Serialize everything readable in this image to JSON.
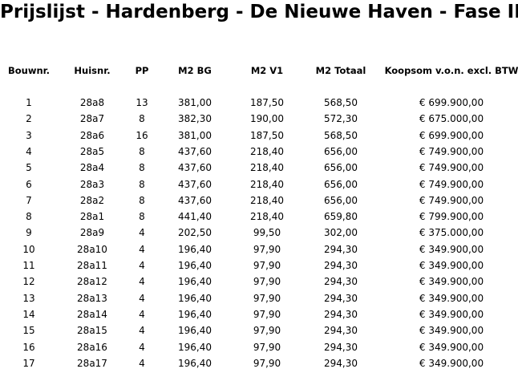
{
  "header": {
    "title": "Prijslijst - Hardenberg - De Nieuwe Haven - Fase II"
  },
  "table": {
    "columns": [
      "Bouwnr.",
      "Huisnr.",
      "PP",
      "M2 BG",
      "M2 V1",
      "M2 Totaal",
      "Koopsom v.o.n. excl. BTW"
    ],
    "rows": [
      [
        "1",
        "28a8",
        "13",
        "381,00",
        "187,50",
        "568,50",
        "€ 699.900,00"
      ],
      [
        "2",
        "28a7",
        "8",
        "382,30",
        "190,00",
        "572,30",
        "€ 675.000,00"
      ],
      [
        "3",
        "28a6",
        "16",
        "381,00",
        "187,50",
        "568,50",
        "€ 699.900,00"
      ],
      [
        "4",
        "28a5",
        "8",
        "437,60",
        "218,40",
        "656,00",
        "€ 749.900,00"
      ],
      [
        "5",
        "28a4",
        "8",
        "437,60",
        "218,40",
        "656,00",
        "€ 749.900,00"
      ],
      [
        "6",
        "28a3",
        "8",
        "437,60",
        "218,40",
        "656,00",
        "€ 749.900,00"
      ],
      [
        "7",
        "28a2",
        "8",
        "437,60",
        "218,40",
        "656,00",
        "€ 749.900,00"
      ],
      [
        "8",
        "28a1",
        "8",
        "441,40",
        "218,40",
        "659,80",
        "€ 799.900,00"
      ],
      [
        "9",
        "28a9",
        "4",
        "202,50",
        "99,50",
        "302,00",
        "€ 375.000,00"
      ],
      [
        "10",
        "28a10",
        "4",
        "196,40",
        "97,90",
        "294,30",
        "€ 349.900,00"
      ],
      [
        "11",
        "28a11",
        "4",
        "196,40",
        "97,90",
        "294,30",
        "€ 349.900,00"
      ],
      [
        "12",
        "28a12",
        "4",
        "196,40",
        "97,90",
        "294,30",
        "€ 349.900,00"
      ],
      [
        "13",
        "28a13",
        "4",
        "196,40",
        "97,90",
        "294,30",
        "€ 349.900,00"
      ],
      [
        "14",
        "28a14",
        "4",
        "196,40",
        "97,90",
        "294,30",
        "€ 349.900,00"
      ],
      [
        "15",
        "28a15",
        "4",
        "196,40",
        "97,90",
        "294,30",
        "€ 349.900,00"
      ],
      [
        "16",
        "28a16",
        "4",
        "196,40",
        "97,90",
        "294,30",
        "€ 349.900,00"
      ],
      [
        "17",
        "28a17",
        "4",
        "196,40",
        "97,90",
        "294,30",
        "€ 349.900,00"
      ]
    ]
  }
}
